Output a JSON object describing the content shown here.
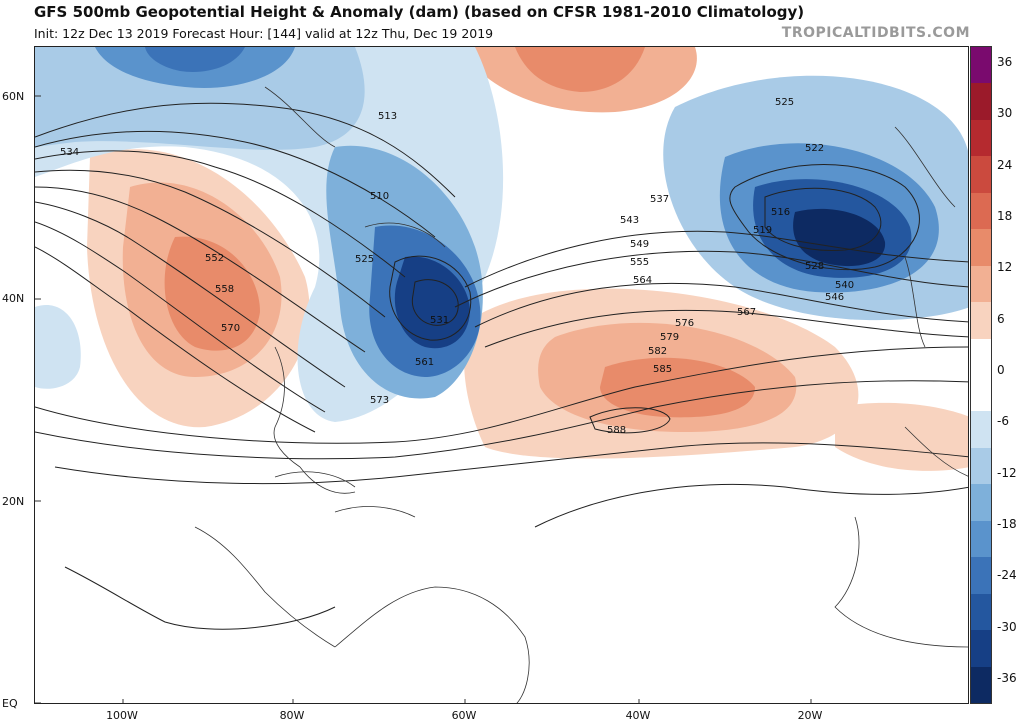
{
  "header": {
    "title": "GFS 500mb Geopotential Height & Anomaly (dam) (based on CFSR 1981-2010 Climatology)",
    "subtitle": "Init: 12z Dec 13 2019   Forecast Hour: [144]   valid at 12z Thu, Dec 19 2019",
    "watermark": "TROPICALTIDBITS.COM"
  },
  "map": {
    "lat_labels": [
      "60N",
      "40N",
      "20N",
      "EQ"
    ],
    "lon_labels": [
      "100W",
      "80W",
      "60W",
      "40W",
      "20W"
    ],
    "contour_labels": [
      "513",
      "510",
      "525",
      "516",
      "519",
      "522",
      "525",
      "528",
      "531",
      "534",
      "537",
      "540",
      "543",
      "546",
      "549",
      "552",
      "555",
      "558",
      "561",
      "564",
      "567",
      "570",
      "573",
      "576",
      "579",
      "582",
      "585",
      "588"
    ]
  },
  "colorbar": {
    "ticks": [
      "36",
      "30",
      "24",
      "18",
      "12",
      "6",
      "0",
      "-6",
      "-12",
      "-18",
      "-24",
      "-30",
      "-36"
    ],
    "colors": [
      "#7a0a6e",
      "#9b1a2a",
      "#b52a2f",
      "#cb4a3e",
      "#dc6a52",
      "#e88b6a",
      "#f2b093",
      "#f8d3bf",
      "#ffffff",
      "#ffffff",
      "#cfe3f2",
      "#a9cbe7",
      "#7eb0da",
      "#5a93cc",
      "#3b73b8",
      "#24579f",
      "#163f85",
      "#0d2a62"
    ]
  }
}
